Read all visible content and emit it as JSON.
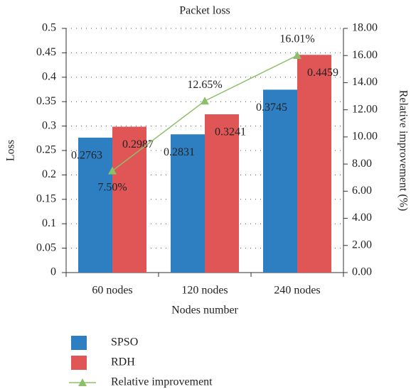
{
  "chart_data": {
    "type": "bar",
    "title": "Packet loss",
    "xlabel": "Nodes number",
    "ylabel": "Loss",
    "y2label": "Relative improvement (%)",
    "categories": [
      "60 nodes",
      "120 nodes",
      "240 nodes"
    ],
    "series": [
      {
        "name": "SPSO",
        "color": "#2e7fc2",
        "values": [
          0.2763,
          0.2831,
          0.3745
        ]
      },
      {
        "name": "RDH",
        "color": "#e05555",
        "values": [
          0.2987,
          0.3241,
          0.4459
        ]
      },
      {
        "name": "Relative improvement",
        "type": "line",
        "axis": "y2",
        "color": "#8dbf6a",
        "values": [
          7.5,
          12.65,
          16.01
        ],
        "value_labels": [
          "7.50%",
          "12.65%",
          "16.01%"
        ]
      }
    ],
    "ylim": [
      0,
      0.5
    ],
    "yticks": [
      0,
      0.05,
      0.1,
      0.15,
      0.2,
      0.25,
      0.3,
      0.35,
      0.4,
      0.45,
      0.5
    ],
    "y2lim": [
      0,
      18
    ],
    "y2ticks": [
      {
        "value": 0,
        "label": "0.00"
      },
      {
        "value": 2,
        "label": "2.00"
      },
      {
        "value": 4,
        "label": "4.00"
      },
      {
        "value": 6,
        "label": "6.00"
      },
      {
        "value": 8,
        "label": "8.00"
      },
      {
        "value": 10,
        "label": "10.00"
      },
      {
        "value": 12,
        "label": "12.00"
      },
      {
        "value": 14,
        "label": "14.00"
      },
      {
        "value": 16,
        "label": "16.00"
      },
      {
        "value": 18,
        "label": "18.00"
      }
    ],
    "grid": true,
    "legend": "bottom"
  }
}
